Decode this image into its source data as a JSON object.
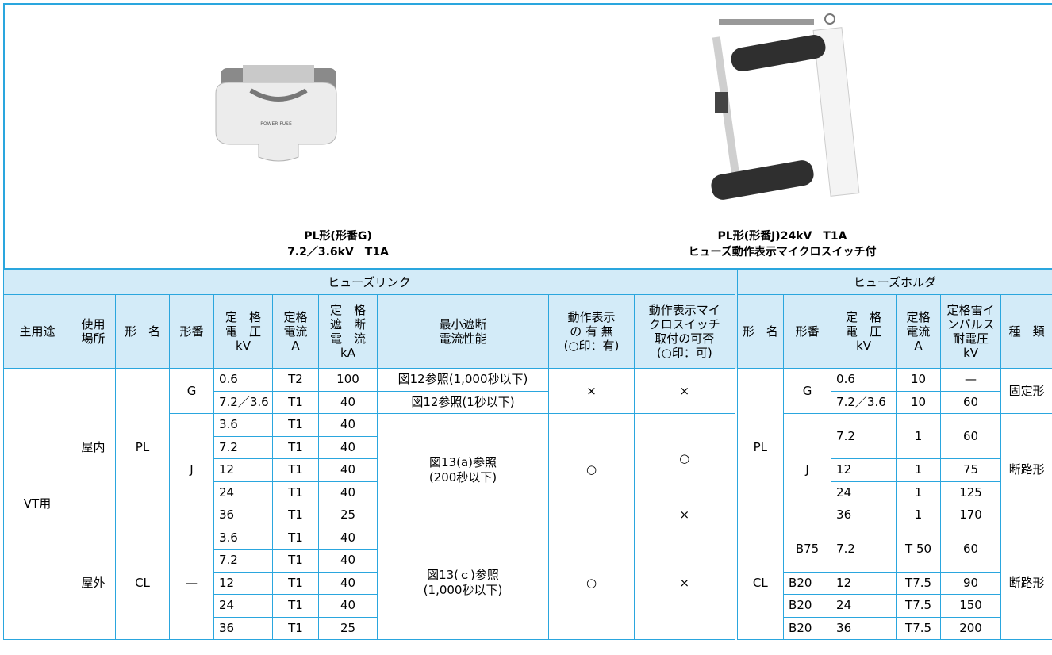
{
  "photos": [
    {
      "caption": [
        "PL形(形番G)",
        "7.2／3.6kV　T1A"
      ]
    },
    {
      "caption": [
        "PL形(形番J)24kV　T1A",
        "ヒューズ動作表示マイクロスイッチ付"
      ]
    }
  ],
  "table": {
    "group_headers": [
      "ヒューズリンク",
      "ヒューズホルダ"
    ],
    "columns": [
      "主用途",
      "使用\n場所",
      "形　名",
      "形番",
      "定　格\n電　圧\nkV",
      "定格\n電流\nA",
      "定　格\n遮　断\n電　流\nkA",
      "最小遮断\n電流性能",
      "動作表示\nの 有 無\n(○印：有)",
      "動作表示マイ\nクロスイッチ\n取付の可否\n(○印：可)",
      "形　名",
      "形番",
      "定　格\n電　圧\nkV",
      "定格\n電流\nA",
      "定格雷イ\nンパルス\n耐電圧\nkV",
      "種　類"
    ],
    "rows": [
      [
        "VT用",
        "屋内",
        "PL",
        "G",
        "0.6",
        "T2",
        "100",
        "図12参照(1,000秒以下)",
        "×",
        "×",
        "PL",
        "G",
        "0.6",
        "10",
        "—",
        "固定形"
      ],
      [
        "7.2／3.6",
        "T1",
        "40",
        "図12参照(1秒以下)",
        "7.2／3.6",
        "10",
        "60"
      ],
      [
        "J",
        "3.6",
        "T1",
        "40",
        "図13(a)参照\n(200秒以下)",
        "○",
        "○",
        "J",
        "7.2",
        "1",
        "60",
        "断路形"
      ],
      [
        "7.2",
        "T1",
        "40"
      ],
      [
        "12",
        "T1",
        "40",
        "12",
        "1",
        "75"
      ],
      [
        "24",
        "T1",
        "40",
        "24",
        "1",
        "125"
      ],
      [
        "36",
        "T1",
        "25",
        "×",
        "36",
        "1",
        "170"
      ],
      [
        "屋外",
        "CL",
        "—",
        "3.6",
        "T1",
        "40",
        "図13(ｃ)参照\n(1,000秒以下)",
        "○",
        "×",
        "CL",
        "B75",
        "7.2",
        "T 50",
        "60",
        "断路形"
      ],
      [
        "7.2",
        "T1",
        "40"
      ],
      [
        "12",
        "T1",
        "40",
        "B20",
        "12",
        "T7.5",
        "90"
      ],
      [
        "24",
        "T1",
        "40",
        "B20",
        "24",
        "T7.5",
        "150"
      ],
      [
        "36",
        "T1",
        "25",
        "B20",
        "36",
        "T7.5",
        "200"
      ]
    ]
  }
}
